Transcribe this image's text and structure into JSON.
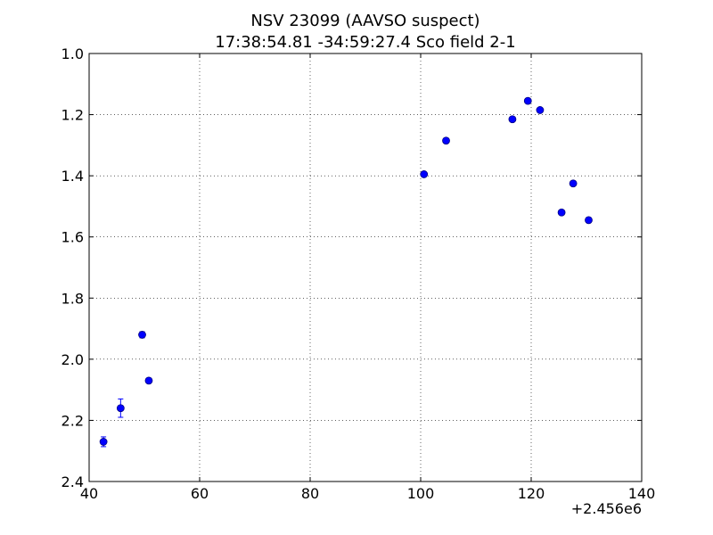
{
  "chart_data": {
    "type": "scatter",
    "title": "NSV 23099  (AAVSO suspect)",
    "subtitle": "17:38:54.81 -34:59:27.4 Sco field 2-1",
    "xlabel": "",
    "ylabel": "",
    "x_offset_label": "+2.456e6",
    "xlim": [
      40,
      140
    ],
    "ylim": [
      2.4,
      1.0
    ],
    "y_inverted": true,
    "x_ticks": [
      40,
      60,
      80,
      100,
      120,
      140
    ],
    "x_tick_labels": [
      "40",
      "60",
      "80",
      "100",
      "120",
      "140"
    ],
    "y_ticks": [
      1.0,
      1.2,
      1.4,
      1.6,
      1.8,
      2.0,
      2.2,
      2.4
    ],
    "y_tick_labels": [
      "1.0",
      "1.2",
      "1.4",
      "1.6",
      "1.8",
      "2.0",
      "2.2",
      "2.4"
    ],
    "grid": true,
    "marker_color": "#0000ff",
    "points": [
      {
        "x": 42.6,
        "y": 2.27,
        "err": 0.016
      },
      {
        "x": 45.7,
        "y": 2.16,
        "err": 0.03
      },
      {
        "x": 49.6,
        "y": 1.92,
        "err": 0.01
      },
      {
        "x": 50.8,
        "y": 2.07,
        "err": 0.008
      },
      {
        "x": 100.6,
        "y": 1.395,
        "err": 0.006
      },
      {
        "x": 104.6,
        "y": 1.285,
        "err": 0.006
      },
      {
        "x": 116.6,
        "y": 1.215,
        "err": 0.006
      },
      {
        "x": 119.4,
        "y": 1.155,
        "err": 0.006
      },
      {
        "x": 121.6,
        "y": 1.185,
        "err": 0.006
      },
      {
        "x": 125.5,
        "y": 1.52,
        "err": 0.006
      },
      {
        "x": 127.6,
        "y": 1.425,
        "err": 0.006
      },
      {
        "x": 130.4,
        "y": 1.545,
        "err": 0.006
      }
    ]
  }
}
